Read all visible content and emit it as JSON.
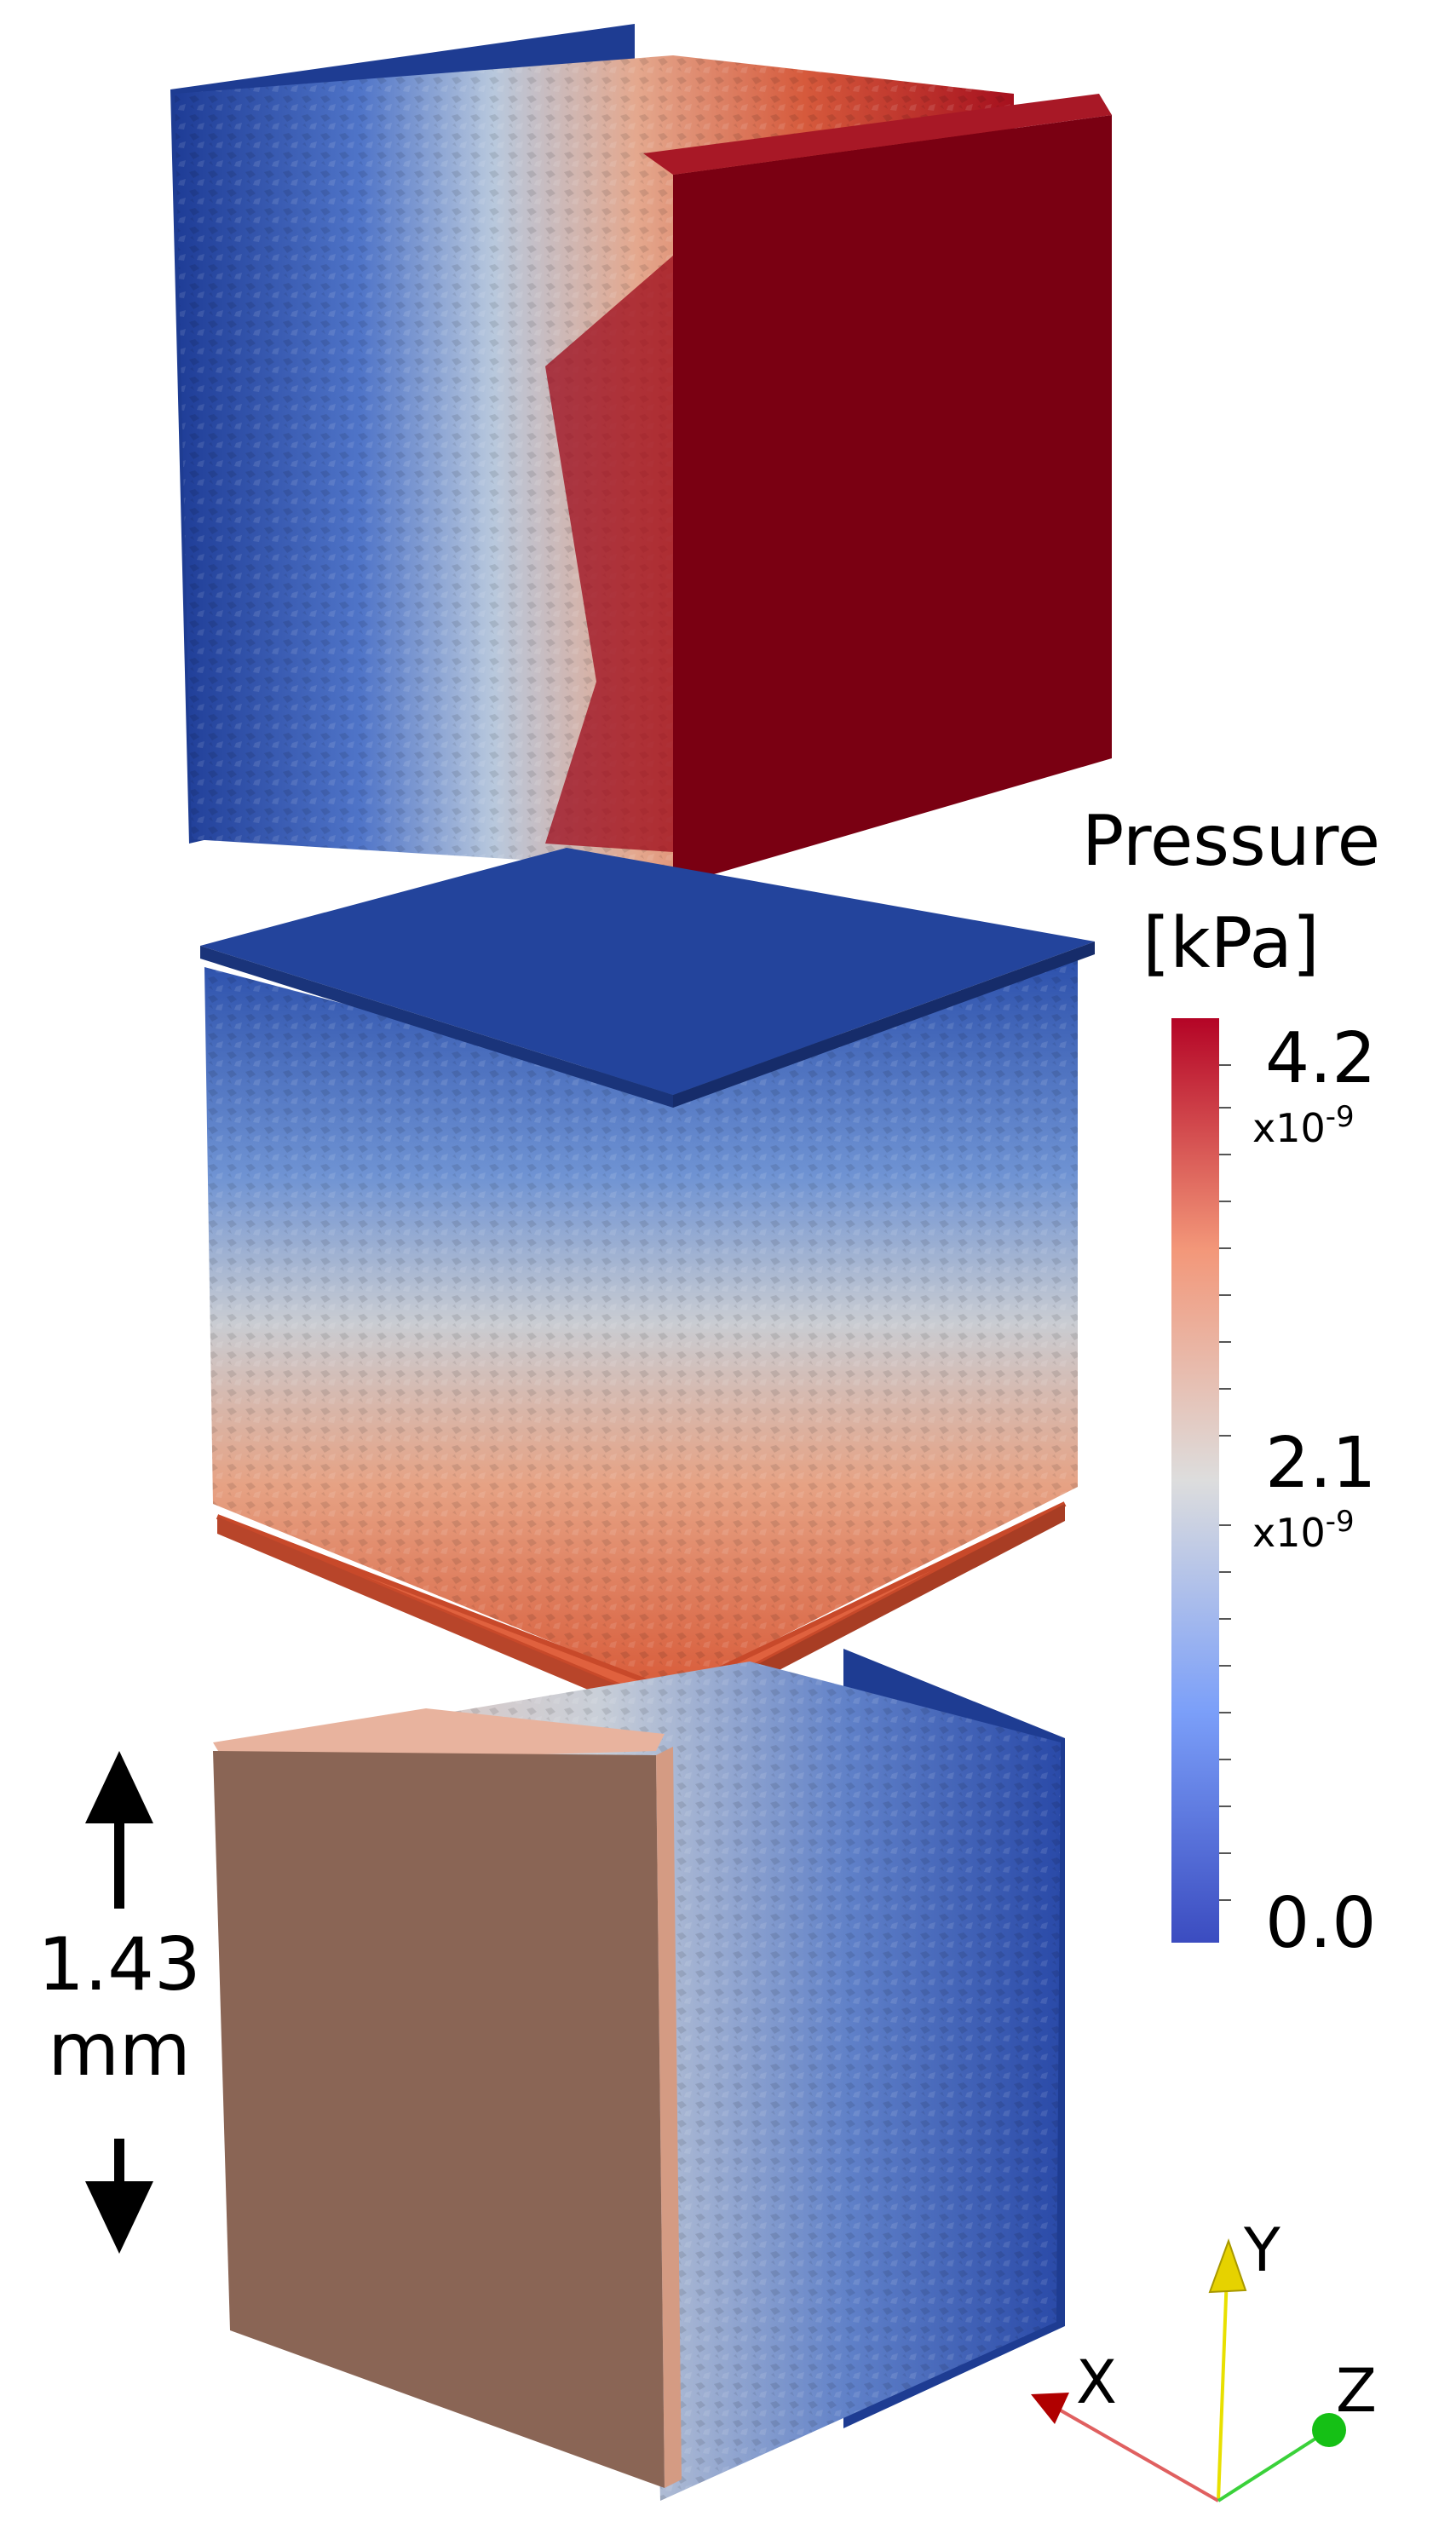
{
  "legend": {
    "title_line1": "Pressure",
    "title_line2": "[kPa]",
    "tick_max": "4.2",
    "tick_max_exp": "x10-9",
    "tick_mid": "2.1",
    "tick_mid_exp": "x10-9",
    "tick_min": "0.0",
    "colors": {
      "low": "#3b4cc0",
      "mid": "#dddddd",
      "high": "#b40426"
    }
  },
  "scale_bar": {
    "value": "1.43",
    "unit": "mm"
  },
  "axes": {
    "x_label": "X",
    "y_label": "Y",
    "z_label": "Z"
  },
  "colors": {
    "dark_red": "#7a0012",
    "dark_blue": "#1e3d9a",
    "orange_red": "#e0613e",
    "tan_face": "#8a6555",
    "tan_top": "#e8b39e"
  }
}
